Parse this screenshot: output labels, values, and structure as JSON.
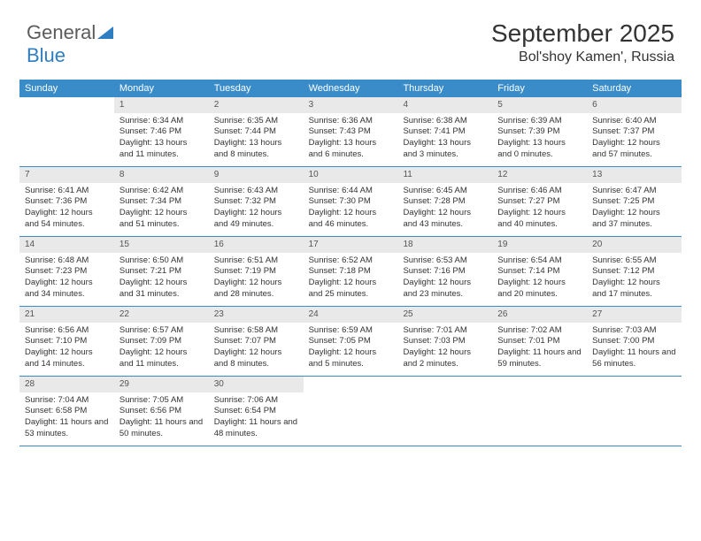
{
  "logo": {
    "text1": "General",
    "text2": "Blue"
  },
  "title": "September 2025",
  "location": "Bol'shoy Kamen', Russia",
  "colors": {
    "header_bg": "#3a8cc9",
    "header_text": "#ffffff",
    "daynum_bg": "#e9e9e9",
    "border": "#3a8cc9",
    "text": "#333333",
    "logo_gray": "#5b5b5b",
    "logo_blue": "#2f7ec1"
  },
  "fonts": {
    "title_size_pt": 21,
    "location_size_pt": 12,
    "header_cell_size_pt": 8,
    "body_size_pt": 7
  },
  "dayHeaders": [
    "Sunday",
    "Monday",
    "Tuesday",
    "Wednesday",
    "Thursday",
    "Friday",
    "Saturday"
  ],
  "weeks": [
    [
      {
        "n": "",
        "sr": "",
        "ss": "",
        "dl": ""
      },
      {
        "n": "1",
        "sr": "Sunrise: 6:34 AM",
        "ss": "Sunset: 7:46 PM",
        "dl": "Daylight: 13 hours and 11 minutes."
      },
      {
        "n": "2",
        "sr": "Sunrise: 6:35 AM",
        "ss": "Sunset: 7:44 PM",
        "dl": "Daylight: 13 hours and 8 minutes."
      },
      {
        "n": "3",
        "sr": "Sunrise: 6:36 AM",
        "ss": "Sunset: 7:43 PM",
        "dl": "Daylight: 13 hours and 6 minutes."
      },
      {
        "n": "4",
        "sr": "Sunrise: 6:38 AM",
        "ss": "Sunset: 7:41 PM",
        "dl": "Daylight: 13 hours and 3 minutes."
      },
      {
        "n": "5",
        "sr": "Sunrise: 6:39 AM",
        "ss": "Sunset: 7:39 PM",
        "dl": "Daylight: 13 hours and 0 minutes."
      },
      {
        "n": "6",
        "sr": "Sunrise: 6:40 AM",
        "ss": "Sunset: 7:37 PM",
        "dl": "Daylight: 12 hours and 57 minutes."
      }
    ],
    [
      {
        "n": "7",
        "sr": "Sunrise: 6:41 AM",
        "ss": "Sunset: 7:36 PM",
        "dl": "Daylight: 12 hours and 54 minutes."
      },
      {
        "n": "8",
        "sr": "Sunrise: 6:42 AM",
        "ss": "Sunset: 7:34 PM",
        "dl": "Daylight: 12 hours and 51 minutes."
      },
      {
        "n": "9",
        "sr": "Sunrise: 6:43 AM",
        "ss": "Sunset: 7:32 PM",
        "dl": "Daylight: 12 hours and 49 minutes."
      },
      {
        "n": "10",
        "sr": "Sunrise: 6:44 AM",
        "ss": "Sunset: 7:30 PM",
        "dl": "Daylight: 12 hours and 46 minutes."
      },
      {
        "n": "11",
        "sr": "Sunrise: 6:45 AM",
        "ss": "Sunset: 7:28 PM",
        "dl": "Daylight: 12 hours and 43 minutes."
      },
      {
        "n": "12",
        "sr": "Sunrise: 6:46 AM",
        "ss": "Sunset: 7:27 PM",
        "dl": "Daylight: 12 hours and 40 minutes."
      },
      {
        "n": "13",
        "sr": "Sunrise: 6:47 AM",
        "ss": "Sunset: 7:25 PM",
        "dl": "Daylight: 12 hours and 37 minutes."
      }
    ],
    [
      {
        "n": "14",
        "sr": "Sunrise: 6:48 AM",
        "ss": "Sunset: 7:23 PM",
        "dl": "Daylight: 12 hours and 34 minutes."
      },
      {
        "n": "15",
        "sr": "Sunrise: 6:50 AM",
        "ss": "Sunset: 7:21 PM",
        "dl": "Daylight: 12 hours and 31 minutes."
      },
      {
        "n": "16",
        "sr": "Sunrise: 6:51 AM",
        "ss": "Sunset: 7:19 PM",
        "dl": "Daylight: 12 hours and 28 minutes."
      },
      {
        "n": "17",
        "sr": "Sunrise: 6:52 AM",
        "ss": "Sunset: 7:18 PM",
        "dl": "Daylight: 12 hours and 25 minutes."
      },
      {
        "n": "18",
        "sr": "Sunrise: 6:53 AM",
        "ss": "Sunset: 7:16 PM",
        "dl": "Daylight: 12 hours and 23 minutes."
      },
      {
        "n": "19",
        "sr": "Sunrise: 6:54 AM",
        "ss": "Sunset: 7:14 PM",
        "dl": "Daylight: 12 hours and 20 minutes."
      },
      {
        "n": "20",
        "sr": "Sunrise: 6:55 AM",
        "ss": "Sunset: 7:12 PM",
        "dl": "Daylight: 12 hours and 17 minutes."
      }
    ],
    [
      {
        "n": "21",
        "sr": "Sunrise: 6:56 AM",
        "ss": "Sunset: 7:10 PM",
        "dl": "Daylight: 12 hours and 14 minutes."
      },
      {
        "n": "22",
        "sr": "Sunrise: 6:57 AM",
        "ss": "Sunset: 7:09 PM",
        "dl": "Daylight: 12 hours and 11 minutes."
      },
      {
        "n": "23",
        "sr": "Sunrise: 6:58 AM",
        "ss": "Sunset: 7:07 PM",
        "dl": "Daylight: 12 hours and 8 minutes."
      },
      {
        "n": "24",
        "sr": "Sunrise: 6:59 AM",
        "ss": "Sunset: 7:05 PM",
        "dl": "Daylight: 12 hours and 5 minutes."
      },
      {
        "n": "25",
        "sr": "Sunrise: 7:01 AM",
        "ss": "Sunset: 7:03 PM",
        "dl": "Daylight: 12 hours and 2 minutes."
      },
      {
        "n": "26",
        "sr": "Sunrise: 7:02 AM",
        "ss": "Sunset: 7:01 PM",
        "dl": "Daylight: 11 hours and 59 minutes."
      },
      {
        "n": "27",
        "sr": "Sunrise: 7:03 AM",
        "ss": "Sunset: 7:00 PM",
        "dl": "Daylight: 11 hours and 56 minutes."
      }
    ],
    [
      {
        "n": "28",
        "sr": "Sunrise: 7:04 AM",
        "ss": "Sunset: 6:58 PM",
        "dl": "Daylight: 11 hours and 53 minutes."
      },
      {
        "n": "29",
        "sr": "Sunrise: 7:05 AM",
        "ss": "Sunset: 6:56 PM",
        "dl": "Daylight: 11 hours and 50 minutes."
      },
      {
        "n": "30",
        "sr": "Sunrise: 7:06 AM",
        "ss": "Sunset: 6:54 PM",
        "dl": "Daylight: 11 hours and 48 minutes."
      },
      {
        "n": "",
        "sr": "",
        "ss": "",
        "dl": ""
      },
      {
        "n": "",
        "sr": "",
        "ss": "",
        "dl": ""
      },
      {
        "n": "",
        "sr": "",
        "ss": "",
        "dl": ""
      },
      {
        "n": "",
        "sr": "",
        "ss": "",
        "dl": ""
      }
    ]
  ]
}
